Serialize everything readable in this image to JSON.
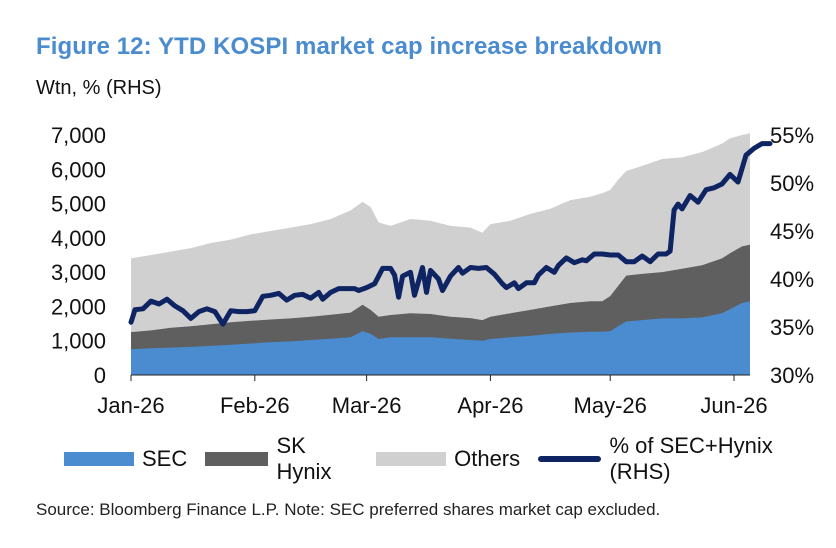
{
  "header": {
    "title": "Figure 12: YTD KOSPI market cap increase breakdown",
    "unit_label": "Wtn, % (RHS)"
  },
  "legend": {
    "items": [
      {
        "label": "SEC",
        "color": "#4a8ccf",
        "kind": "area"
      },
      {
        "label": "SK Hynix",
        "color": "#5f5f5f",
        "kind": "area"
      },
      {
        "label": "Others",
        "color": "#d0d0d0",
        "kind": "area"
      },
      {
        "label": "% of SEC+Hynix (RHS)",
        "color": "#0f2463",
        "kind": "line"
      }
    ]
  },
  "footer": {
    "source": "Source: Bloomberg Finance L.P. Note: SEC preferred shares market cap excluded."
  },
  "chart_data": {
    "type": "area",
    "stacked": true,
    "x_axis": {
      "ticks": [
        "Jan-26",
        "Feb-26",
        "Mar-26",
        "Apr-26",
        "May-26",
        "Jun-26"
      ],
      "tick_day_index": [
        0,
        31,
        59,
        90,
        120,
        151
      ],
      "range_days": [
        0,
        155
      ]
    },
    "y_left": {
      "ticks": [
        "0",
        "1,000",
        "2,000",
        "3,000",
        "4,000",
        "5,000",
        "6,000",
        "7,000"
      ],
      "range": [
        0,
        7000
      ]
    },
    "y_right": {
      "ticks": [
        "30%",
        "35%",
        "40%",
        "45%",
        "50%",
        "55%"
      ],
      "range": [
        30,
        55
      ]
    },
    "series": [
      {
        "name": "SEC",
        "axis": "left",
        "color": "#4a8ccf",
        "points": [
          [
            0,
            750
          ],
          [
            5,
            780
          ],
          [
            10,
            800
          ],
          [
            15,
            820
          ],
          [
            20,
            850
          ],
          [
            25,
            880
          ],
          [
            30,
            920
          ],
          [
            35,
            960
          ],
          [
            40,
            980
          ],
          [
            45,
            1020
          ],
          [
            50,
            1060
          ],
          [
            55,
            1100
          ],
          [
            58,
            1280
          ],
          [
            60,
            1200
          ],
          [
            62,
            1050
          ],
          [
            65,
            1100
          ],
          [
            70,
            1100
          ],
          [
            75,
            1100
          ],
          [
            80,
            1060
          ],
          [
            85,
            1020
          ],
          [
            88,
            1000
          ],
          [
            90,
            1050
          ],
          [
            95,
            1100
          ],
          [
            100,
            1140
          ],
          [
            105,
            1200
          ],
          [
            110,
            1240
          ],
          [
            115,
            1260
          ],
          [
            118,
            1260
          ],
          [
            120,
            1280
          ],
          [
            122,
            1420
          ],
          [
            124,
            1560
          ],
          [
            128,
            1600
          ],
          [
            133,
            1650
          ],
          [
            138,
            1650
          ],
          [
            143,
            1680
          ],
          [
            148,
            1800
          ],
          [
            150,
            1920
          ],
          [
            153,
            2100
          ],
          [
            155,
            2150
          ]
        ]
      },
      {
        "name": "SK Hynix",
        "axis": "left",
        "color": "#5f5f5f",
        "points": [
          [
            0,
            1250
          ],
          [
            5,
            1300
          ],
          [
            10,
            1380
          ],
          [
            15,
            1420
          ],
          [
            20,
            1480
          ],
          [
            25,
            1540
          ],
          [
            30,
            1580
          ],
          [
            35,
            1620
          ],
          [
            40,
            1650
          ],
          [
            45,
            1700
          ],
          [
            50,
            1760
          ],
          [
            55,
            1820
          ],
          [
            58,
            2050
          ],
          [
            60,
            1900
          ],
          [
            62,
            1700
          ],
          [
            65,
            1750
          ],
          [
            70,
            1800
          ],
          [
            75,
            1780
          ],
          [
            80,
            1700
          ],
          [
            85,
            1660
          ],
          [
            88,
            1600
          ],
          [
            90,
            1700
          ],
          [
            95,
            1800
          ],
          [
            100,
            1900
          ],
          [
            105,
            2000
          ],
          [
            110,
            2100
          ],
          [
            115,
            2150
          ],
          [
            118,
            2150
          ],
          [
            120,
            2300
          ],
          [
            122,
            2600
          ],
          [
            124,
            2900
          ],
          [
            128,
            2950
          ],
          [
            133,
            3000
          ],
          [
            138,
            3100
          ],
          [
            143,
            3200
          ],
          [
            148,
            3400
          ],
          [
            150,
            3550
          ],
          [
            153,
            3750
          ],
          [
            155,
            3800
          ]
        ]
      },
      {
        "name": "Others",
        "axis": "left",
        "color": "#d0d0d0",
        "points": [
          [
            0,
            3400
          ],
          [
            5,
            3500
          ],
          [
            10,
            3600
          ],
          [
            15,
            3700
          ],
          [
            20,
            3850
          ],
          [
            25,
            3950
          ],
          [
            30,
            4100
          ],
          [
            35,
            4200
          ],
          [
            40,
            4300
          ],
          [
            45,
            4400
          ],
          [
            50,
            4550
          ],
          [
            55,
            4800
          ],
          [
            58,
            5050
          ],
          [
            60,
            4900
          ],
          [
            62,
            4450
          ],
          [
            65,
            4350
          ],
          [
            70,
            4550
          ],
          [
            75,
            4500
          ],
          [
            80,
            4350
          ],
          [
            85,
            4300
          ],
          [
            88,
            4150
          ],
          [
            90,
            4400
          ],
          [
            95,
            4500
          ],
          [
            100,
            4700
          ],
          [
            105,
            4850
          ],
          [
            110,
            5100
          ],
          [
            115,
            5200
          ],
          [
            118,
            5300
          ],
          [
            120,
            5400
          ],
          [
            122,
            5700
          ],
          [
            124,
            5950
          ],
          [
            128,
            6100
          ],
          [
            133,
            6300
          ],
          [
            138,
            6350
          ],
          [
            143,
            6500
          ],
          [
            148,
            6750
          ],
          [
            150,
            6900
          ],
          [
            153,
            7000
          ],
          [
            155,
            7050
          ]
        ]
      },
      {
        "name": "% of SEC+Hynix (RHS)",
        "axis": "right",
        "color": "#0f2463",
        "points": [
          [
            0,
            35.5
          ],
          [
            1,
            36.8
          ],
          [
            3,
            36.9
          ],
          [
            5,
            37.7
          ],
          [
            7,
            37.4
          ],
          [
            9,
            37.9
          ],
          [
            11,
            37.2
          ],
          [
            13,
            36.7
          ],
          [
            15,
            35.9
          ],
          [
            17,
            36.6
          ],
          [
            19,
            36.9
          ],
          [
            21,
            36.6
          ],
          [
            23,
            35.3
          ],
          [
            25,
            36.7
          ],
          [
            27,
            36.6
          ],
          [
            29,
            36.6
          ],
          [
            31,
            36.7
          ],
          [
            33,
            38.2
          ],
          [
            35,
            38.3
          ],
          [
            37,
            38.5
          ],
          [
            39,
            37.8
          ],
          [
            41,
            38.3
          ],
          [
            43,
            38.4
          ],
          [
            45,
            38.0
          ],
          [
            47,
            38.6
          ],
          [
            48,
            37.9
          ],
          [
            50,
            38.6
          ],
          [
            52,
            39.0
          ],
          [
            54,
            39.0
          ],
          [
            56,
            39.0
          ],
          [
            57,
            38.8
          ],
          [
            59,
            39.1
          ],
          [
            61,
            39.5
          ],
          [
            63,
            41.1
          ],
          [
            65,
            41.1
          ],
          [
            66,
            40.4
          ],
          [
            67,
            38.1
          ],
          [
            68,
            40.3
          ],
          [
            70,
            40.7
          ],
          [
            71,
            38.3
          ],
          [
            73,
            41.2
          ],
          [
            74,
            38.6
          ],
          [
            75,
            40.9
          ],
          [
            77,
            40.0
          ],
          [
            78,
            38.8
          ],
          [
            80,
            40.3
          ],
          [
            82,
            41.2
          ],
          [
            83,
            40.6
          ],
          [
            85,
            41.2
          ],
          [
            87,
            41.1
          ],
          [
            89,
            41.2
          ],
          [
            91,
            40.5
          ],
          [
            93,
            39.5
          ],
          [
            94,
            39.1
          ],
          [
            96,
            39.6
          ],
          [
            97,
            39.0
          ],
          [
            99,
            39.6
          ],
          [
            101,
            39.6
          ],
          [
            102,
            40.4
          ],
          [
            104,
            41.2
          ],
          [
            106,
            40.7
          ],
          [
            107,
            41.4
          ],
          [
            109,
            42.2
          ],
          [
            111,
            41.7
          ],
          [
            113,
            42.0
          ],
          [
            114,
            41.9
          ],
          [
            116,
            42.6
          ],
          [
            118,
            42.6
          ],
          [
            120,
            42.5
          ],
          [
            122,
            42.5
          ],
          [
            124,
            41.8
          ],
          [
            126,
            41.8
          ],
          [
            128,
            42.4
          ],
          [
            130,
            41.8
          ],
          [
            132,
            42.6
          ],
          [
            134,
            42.6
          ],
          [
            135,
            42.9
          ],
          [
            136,
            47.2
          ],
          [
            137,
            47.8
          ],
          [
            138,
            47.3
          ],
          [
            140,
            48.7
          ],
          [
            142,
            48.0
          ],
          [
            144,
            49.3
          ],
          [
            146,
            49.5
          ],
          [
            148,
            49.9
          ],
          [
            150,
            50.9
          ],
          [
            152,
            50.1
          ],
          [
            154,
            52.9
          ],
          [
            156,
            53.6
          ],
          [
            158,
            54.1
          ],
          [
            160,
            54.1
          ]
        ]
      }
    ],
    "grid": false,
    "legend_position": "bottom"
  }
}
